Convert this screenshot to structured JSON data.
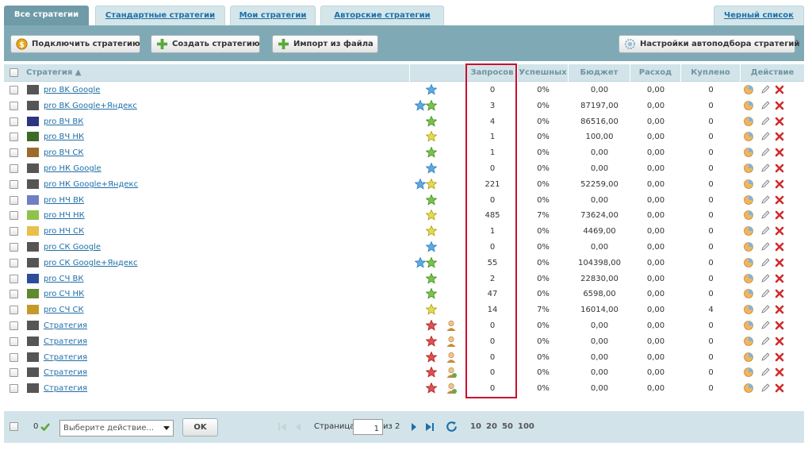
{
  "tabs": [
    {
      "label": "Все стратегии",
      "active": true
    },
    {
      "label": "Стандартные стратегии",
      "active": false
    },
    {
      "label": "Мои стратегии",
      "active": false
    },
    {
      "label": "Авторские стратегии",
      "active": false
    },
    {
      "label": "Черный список",
      "active": false
    }
  ],
  "toolbar": {
    "connect_label": "Подключить стратегию",
    "create_label": "Создать стратегию",
    "import_label": "Импорт из файла",
    "autoselect_label": "Настройки автоподбора стратегий"
  },
  "columns": {
    "strategy": "Стратегия ▲",
    "requests": "Запросов",
    "success": "Успешных",
    "budget": "Бюджет",
    "spent": "Расход",
    "bought": "Куплено",
    "action": "Действие"
  },
  "colors": {
    "accent": "#7fa9b5",
    "header_bg": "#d2e4e9",
    "link": "#1e6fa8",
    "highlight": "#c8102e"
  },
  "rows": [
    {
      "color": "#555555",
      "name": "pro BK Google",
      "stars": [
        "blue"
      ],
      "user": null,
      "requests": "0",
      "success": "0%",
      "budget": "0,00",
      "spent": "0,00",
      "bought": "0"
    },
    {
      "color": "#555555",
      "name": "pro BK Google+Яндекс",
      "stars": [
        "blue",
        "green"
      ],
      "user": null,
      "requests": "3",
      "success": "0%",
      "budget": "87197,00",
      "spent": "0,00",
      "bought": "0"
    },
    {
      "color": "#2b3580",
      "name": "pro ВЧ ВК",
      "stars": [
        "green"
      ],
      "user": null,
      "requests": "4",
      "success": "0%",
      "budget": "86516,00",
      "spent": "0,00",
      "bought": "0"
    },
    {
      "color": "#3e6a28",
      "name": "pro ВЧ НК",
      "stars": [
        "yellow"
      ],
      "user": null,
      "requests": "1",
      "success": "0%",
      "budget": "100,00",
      "spent": "0,00",
      "bought": "0"
    },
    {
      "color": "#9c6a2c",
      "name": "pro ВЧ СК",
      "stars": [
        "green"
      ],
      "user": null,
      "requests": "1",
      "success": "0%",
      "budget": "0,00",
      "spent": "0,00",
      "bought": "0"
    },
    {
      "color": "#555555",
      "name": "pro НК Google",
      "stars": [
        "blue"
      ],
      "user": null,
      "requests": "0",
      "success": "0%",
      "budget": "0,00",
      "spent": "0,00",
      "bought": "0"
    },
    {
      "color": "#555555",
      "name": "pro НК Google+Яндекс",
      "stars": [
        "blue",
        "yellow"
      ],
      "user": null,
      "requests": "221",
      "success": "0%",
      "budget": "52259,00",
      "spent": "0,00",
      "bought": "0"
    },
    {
      "color": "#6f7fc4",
      "name": "pro НЧ ВК",
      "stars": [
        "green"
      ],
      "user": null,
      "requests": "0",
      "success": "0%",
      "budget": "0,00",
      "spent": "0,00",
      "bought": "0"
    },
    {
      "color": "#8fc24a",
      "name": "pro НЧ НК",
      "stars": [
        "yellow"
      ],
      "user": null,
      "requests": "485",
      "success": "7%",
      "budget": "73624,00",
      "spent": "0,00",
      "bought": "0"
    },
    {
      "color": "#e8c04a",
      "name": "pro НЧ СК",
      "stars": [
        "yellow"
      ],
      "user": null,
      "requests": "1",
      "success": "0%",
      "budget": "4469,00",
      "spent": "0,00",
      "bought": "0"
    },
    {
      "color": "#555555",
      "name": "pro СК Google",
      "stars": [
        "blue"
      ],
      "user": null,
      "requests": "0",
      "success": "0%",
      "budget": "0,00",
      "spent": "0,00",
      "bought": "0"
    },
    {
      "color": "#555555",
      "name": "pro СК Google+Яндекс",
      "stars": [
        "blue",
        "green"
      ],
      "user": null,
      "requests": "55",
      "success": "0%",
      "budget": "104398,00",
      "spent": "0,00",
      "bought": "0"
    },
    {
      "color": "#2d4d9a",
      "name": "pro СЧ ВК",
      "stars": [
        "green"
      ],
      "user": null,
      "requests": "2",
      "success": "0%",
      "budget": "22830,00",
      "spent": "0,00",
      "bought": "0"
    },
    {
      "color": "#5f8a2e",
      "name": "pro СЧ НК",
      "stars": [
        "green"
      ],
      "user": null,
      "requests": "47",
      "success": "0%",
      "budget": "6598,00",
      "spent": "0,00",
      "bought": "0"
    },
    {
      "color": "#c49a2a",
      "name": "pro СЧ СК",
      "stars": [
        "yellow"
      ],
      "user": null,
      "requests": "14",
      "success": "7%",
      "budget": "16014,00",
      "spent": "0,00",
      "bought": "4"
    },
    {
      "color": "#555555",
      "name": "Стратегия",
      "stars": [
        "red"
      ],
      "user": "person",
      "requests": "0",
      "success": "0%",
      "budget": "0,00",
      "spent": "0,00",
      "bought": "0"
    },
    {
      "color": "#555555",
      "name": "Стратегия",
      "stars": [
        "red"
      ],
      "user": "person",
      "requests": "0",
      "success": "0%",
      "budget": "0,00",
      "spent": "0,00",
      "bought": "0"
    },
    {
      "color": "#555555",
      "name": "Стратегия",
      "stars": [
        "red"
      ],
      "user": "person",
      "requests": "0",
      "success": "0%",
      "budget": "0,00",
      "spent": "0,00",
      "bought": "0"
    },
    {
      "color": "#555555",
      "name": "Стратегия",
      "stars": [
        "red"
      ],
      "user": "person-shared",
      "requests": "0",
      "success": "0%",
      "budget": "0,00",
      "spent": "0,00",
      "bought": "0"
    },
    {
      "color": "#555555",
      "name": "Стратегия",
      "stars": [
        "red"
      ],
      "user": "person-shared",
      "requests": "0",
      "success": "0%",
      "budget": "0,00",
      "spent": "0,00",
      "bought": "0"
    }
  ],
  "footer": {
    "selected_count": "0",
    "action_placeholder": "Выберите действие...",
    "ok_label": "OK",
    "page_label": "Страница",
    "page_value": "1",
    "of_label": "из 2",
    "page_sizes": [
      "10",
      "20",
      "50",
      "100"
    ]
  }
}
